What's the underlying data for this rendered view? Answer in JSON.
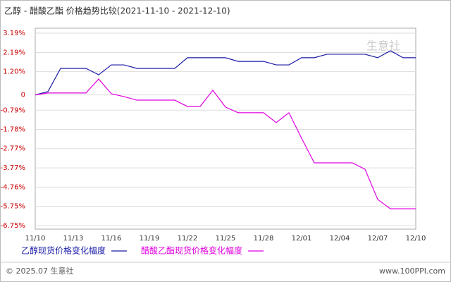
{
  "chart_data": {
    "type": "line",
    "title": "乙醇 - 醋酸乙酯 价格趋势比较(2021-11-10 - 2021-12-10)",
    "categories": [
      "11/10",
      null,
      null,
      "11/13",
      null,
      null,
      "11/16",
      null,
      null,
      "11/19",
      null,
      null,
      "11/22",
      null,
      null,
      "11/25",
      null,
      null,
      "11/28",
      null,
      null,
      "12/01",
      null,
      null,
      "12/04",
      null,
      null,
      "12/07",
      null,
      null,
      "12/10"
    ],
    "series": [
      {
        "name": "乙醇现货价格变化幅度",
        "color": "#1a1aa6",
        "values": [
          0,
          0.17,
          1.37,
          1.37,
          1.37,
          1.04,
          1.55,
          1.55,
          1.37,
          1.37,
          1.37,
          1.37,
          1.92,
          1.92,
          1.92,
          1.92,
          1.73,
          1.73,
          1.73,
          1.55,
          1.55,
          1.92,
          1.92,
          2.1,
          2.1,
          2.1,
          2.1,
          1.92,
          2.28,
          1.92,
          1.92
        ]
      },
      {
        "name": "醋酸乙酯现货价格变化幅度",
        "color": "#e000e0",
        "values": [
          0,
          0.1,
          0.1,
          0.1,
          0.1,
          0.82,
          0.06,
          -0.09,
          -0.27,
          -0.27,
          -0.27,
          -0.27,
          -0.6,
          -0.6,
          0.24,
          -0.63,
          -0.92,
          -0.92,
          -0.92,
          -1.43,
          -0.92,
          -2.24,
          -3.51,
          -3.51,
          -3.51,
          -3.51,
          -3.84,
          -5.4,
          -5.88,
          -5.88,
          -5.88
        ]
      }
    ],
    "ylim": [
      -6.75,
      3.19
    ],
    "yticks": [
      {
        "value": 3.19,
        "label": "3.19%"
      },
      {
        "value": 2.19,
        "label": "2.19%"
      },
      {
        "value": 1.2,
        "label": "1.20%"
      },
      0,
      {
        "value": -0.79,
        "label": "-0.79%"
      },
      {
        "value": -1.78,
        "label": "-1.78%"
      },
      {
        "value": -2.77,
        "label": "-2.77%"
      },
      {
        "value": -3.77,
        "label": "-3.77%"
      },
      {
        "value": -4.76,
        "label": "-4.76%"
      },
      {
        "value": -5.75,
        "label": "-5.75%"
      },
      {
        "value": -6.75,
        "label": "-6.75%"
      }
    ],
    "grid": true,
    "watermark": "生意社",
    "footer_left": "© 2025.07 生意社",
    "footer_right": "www.100PPI.com"
  }
}
